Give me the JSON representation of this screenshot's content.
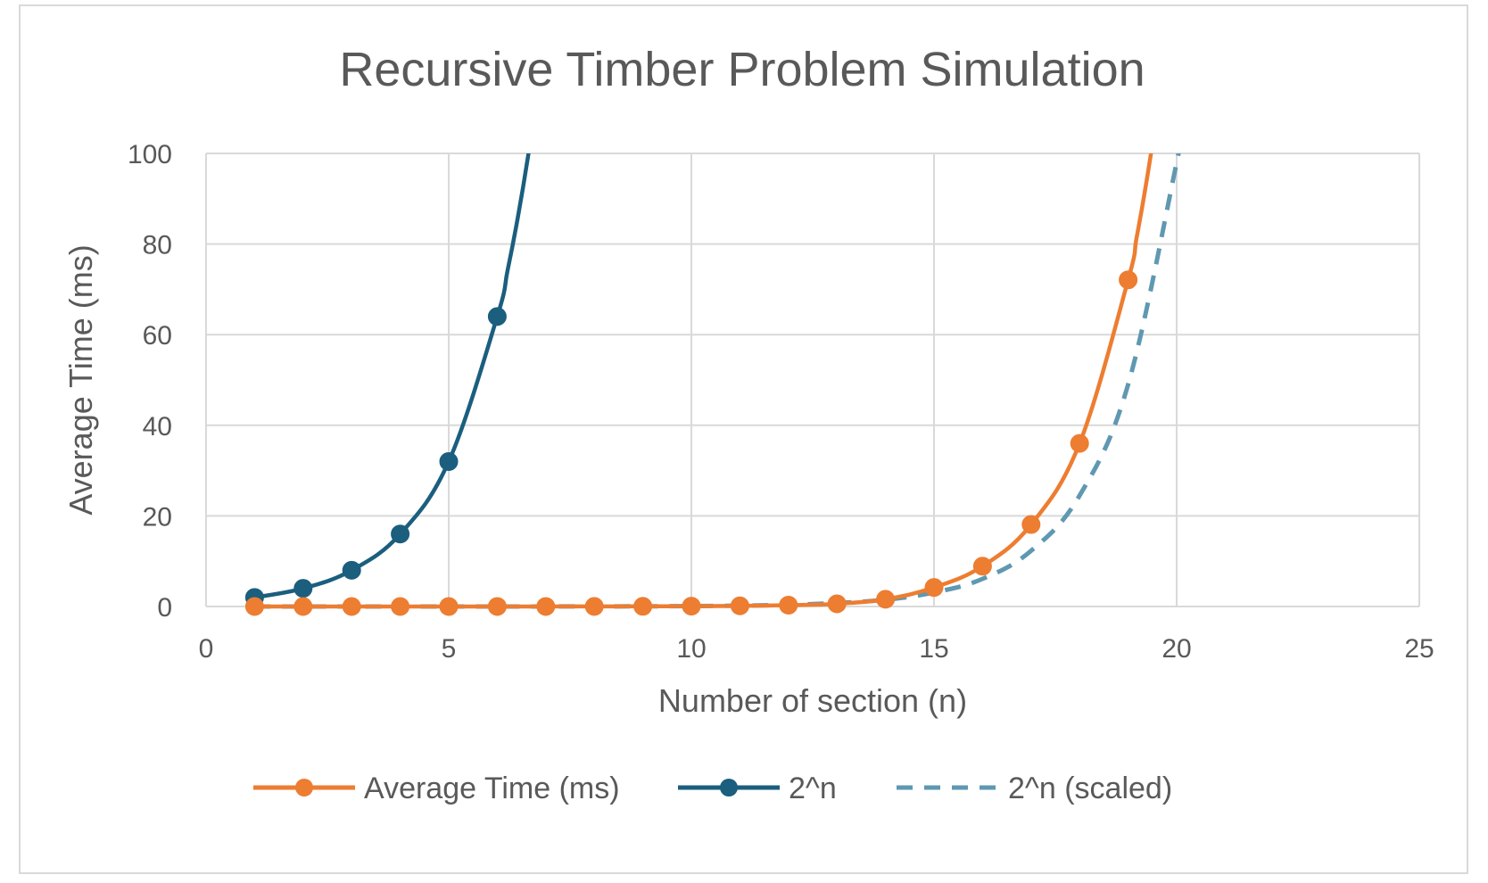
{
  "chart_data": {
    "type": "scatter",
    "title": "Recursive Timber Problem Simulation",
    "xlabel": "Number of section (n)",
    "ylabel": "Average Time (ms)",
    "xlim": [
      0,
      25
    ],
    "ylim": [
      0,
      100
    ],
    "xticks": [
      0,
      5,
      10,
      15,
      20,
      25
    ],
    "yticks": [
      0,
      20,
      40,
      60,
      80,
      100
    ],
    "grid": true,
    "legend_position": "bottom",
    "series": [
      {
        "name": "Average Time (ms)",
        "color": "#ed7d31",
        "style": "solid",
        "markers": true,
        "smooth": true,
        "x": [
          1,
          2,
          3,
          4,
          5,
          6,
          7,
          8,
          9,
          10,
          11,
          12,
          13,
          14,
          15,
          16,
          17,
          18,
          19
        ],
        "y": [
          0.0001,
          0.0003,
          0.0006,
          0.001,
          0.003,
          0.005,
          0.01,
          0.02,
          0.04,
          0.08,
          0.15,
          0.3,
          0.6,
          1.6,
          4.2,
          8.9,
          18.1,
          36.0,
          72.1
        ]
      },
      {
        "name": "2^n",
        "color": "#1b5e7e",
        "style": "solid",
        "markers": true,
        "smooth": true,
        "x": [
          1,
          2,
          3,
          4,
          5,
          6
        ],
        "y": [
          2,
          4,
          8,
          16,
          32,
          64
        ]
      },
      {
        "name": "2^n (scaled)",
        "color": "#5f98b1",
        "style": "dashed",
        "markers": false,
        "smooth": true,
        "x": [
          1,
          2,
          3,
          4,
          5,
          6,
          7,
          8,
          9,
          10,
          11,
          12,
          13,
          14,
          15,
          16,
          17,
          18,
          19,
          20
        ],
        "y": [
          0.0002,
          0.0004,
          0.0008,
          0.0015,
          0.003,
          0.006,
          0.012,
          0.024,
          0.048,
          0.1,
          0.19,
          0.38,
          0.77,
          1.5,
          3.1,
          6.1,
          12.3,
          24.5,
          49,
          98
        ]
      }
    ]
  }
}
